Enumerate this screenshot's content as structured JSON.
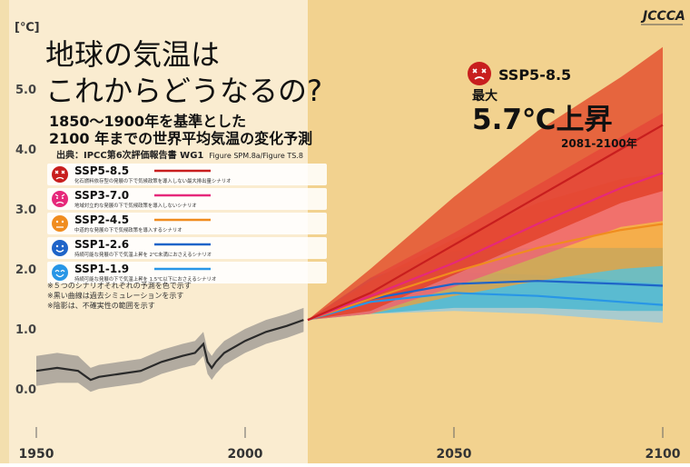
{
  "logo_text": "JCCCA",
  "unit_label": "[℃]",
  "title_line1": "地球の気温は",
  "title_line2": "これからどうなるの?",
  "subtitle_line1": "1850～1900年を基準とした",
  "subtitle_line2": "2100 年までの世界平均気温の変化予測",
  "source_label": "出典：IPCC第6次評価報告書 WG1",
  "source_figure": "Figure SPM.8a/Figure TS.8",
  "highlight": {
    "scenario": "SSP5-8.5",
    "max_label": "最大",
    "value": "5.7℃上昇",
    "period": "2081-2100年"
  },
  "legend": [
    {
      "name": "SSP5-8.5",
      "desc": "化石燃料依存型の発展の下で気候政策を導入しない最大排出量シナリオ",
      "color": "#c81e1e",
      "face": "dead"
    },
    {
      "name": "SSP3-7.0",
      "desc": "地域対立的な発展の下で気候政策を導入しないシナリオ",
      "color": "#e6287a",
      "face": "angry"
    },
    {
      "name": "SSP2-4.5",
      "desc": "中道的な発展の下で気候政策を導入するシナリオ",
      "color": "#f08c1e",
      "face": "neutral"
    },
    {
      "name": "SSP1-2.6",
      "desc": "持続可能な発展の下で気温上昇を 2℃未満におさえるシナリオ",
      "color": "#1e64c8",
      "face": "smile"
    },
    {
      "name": "SSP1-1.9",
      "desc": "持続可能な発展の下で気温上昇を 1.5℃以下におさえるシナリオ",
      "color": "#2896e6",
      "face": "happy"
    }
  ],
  "notes": [
    "※５つのシナリオそれぞれの予測を色で示す",
    "※黒い曲線は過去シミュレーションを示す",
    "※陰影は、不確実性の範囲を示す"
  ],
  "colors": {
    "past_background": "#faecd0",
    "future_background": "#f2d28f",
    "historical_line": "#2a2a2a",
    "historical_band": "#9a9590"
  },
  "chart_data": {
    "type": "line",
    "xlabel": "",
    "ylabel": "[℃]",
    "xlim": [
      1950,
      2100
    ],
    "ylim": [
      -0.5,
      6.0
    ],
    "x_ticks": [
      1950,
      2000,
      2050,
      2100
    ],
    "x_tick_labels": [
      "1950",
      "2000",
      "2050",
      "2100"
    ],
    "y_ticks": [
      0.0,
      1.0,
      2.0,
      3.0,
      4.0,
      5.0
    ],
    "y_tick_labels": [
      "0.0",
      "1.0",
      "2.0",
      "3.0",
      "4.0",
      "5.0"
    ],
    "grid": false,
    "projection_start": 2015,
    "historical": {
      "name": "過去シミュレーション",
      "x": [
        1950,
        1955,
        1960,
        1963,
        1965,
        1970,
        1975,
        1980,
        1985,
        1988,
        1990,
        1991,
        1992,
        1993,
        1995,
        2000,
        2005,
        2010,
        2014
      ],
      "y": [
        0.3,
        0.35,
        0.3,
        0.15,
        0.2,
        0.25,
        0.3,
        0.45,
        0.55,
        0.6,
        0.75,
        0.45,
        0.35,
        0.45,
        0.6,
        0.8,
        0.95,
        1.05,
        1.15
      ],
      "lower": [
        0.05,
        0.1,
        0.1,
        -0.05,
        0.0,
        0.05,
        0.1,
        0.25,
        0.35,
        0.4,
        0.55,
        0.25,
        0.15,
        0.25,
        0.4,
        0.6,
        0.75,
        0.85,
        0.95
      ],
      "upper": [
        0.55,
        0.6,
        0.55,
        0.35,
        0.4,
        0.45,
        0.5,
        0.65,
        0.75,
        0.8,
        0.95,
        0.65,
        0.55,
        0.65,
        0.8,
        1.0,
        1.15,
        1.25,
        1.35
      ]
    },
    "series": [
      {
        "name": "SSP5-8.5",
        "color": "#c81e1e",
        "band_color": "#e03a1e",
        "x": [
          2015,
          2030,
          2050,
          2070,
          2090,
          2100
        ],
        "y": [
          1.15,
          1.6,
          2.4,
          3.2,
          4.0,
          4.4
        ],
        "lower": [
          1.15,
          1.3,
          1.9,
          2.5,
          3.1,
          3.3
        ],
        "upper": [
          1.15,
          2.0,
          3.2,
          4.3,
          5.2,
          5.7
        ]
      },
      {
        "name": "SSP3-7.0",
        "color": "#e6287a",
        "band_color": "#f05a78",
        "x": [
          2015,
          2030,
          2050,
          2070,
          2090,
          2100
        ],
        "y": [
          1.15,
          1.55,
          2.1,
          2.75,
          3.35,
          3.6
        ],
        "lower": [
          1.15,
          1.25,
          1.7,
          2.2,
          2.7,
          2.8
        ],
        "upper": [
          1.15,
          1.85,
          2.6,
          3.4,
          4.2,
          4.6
        ]
      },
      {
        "name": "SSP2-4.5",
        "color": "#f08c1e",
        "band_color": "#f5a030",
        "x": [
          2015,
          2030,
          2050,
          2070,
          2090,
          2100
        ],
        "y": [
          1.15,
          1.5,
          1.95,
          2.35,
          2.65,
          2.75
        ],
        "lower": [
          1.15,
          1.25,
          1.55,
          1.8,
          2.0,
          2.05
        ],
        "upper": [
          1.15,
          1.8,
          2.5,
          3.1,
          3.5,
          3.6
        ]
      },
      {
        "name": "SSP1-2.6",
        "color": "#1e64c8",
        "band_color": "#3cb4d2",
        "x": [
          2015,
          2030,
          2050,
          2070,
          2090,
          2100
        ],
        "y": [
          1.15,
          1.5,
          1.75,
          1.8,
          1.75,
          1.72
        ],
        "lower": [
          1.15,
          1.25,
          1.35,
          1.35,
          1.3,
          1.3
        ],
        "upper": [
          1.15,
          1.85,
          2.3,
          2.35,
          2.35,
          2.35
        ]
      },
      {
        "name": "SSP1-1.9",
        "color": "#2896e6",
        "band_color": "#8cc8e6",
        "x": [
          2015,
          2030,
          2050,
          2070,
          2090,
          2100
        ],
        "y": [
          1.15,
          1.45,
          1.6,
          1.55,
          1.45,
          1.4
        ],
        "lower": [
          1.15,
          1.25,
          1.3,
          1.25,
          1.15,
          1.1
        ],
        "upper": [
          1.15,
          1.7,
          1.95,
          1.9,
          1.8,
          1.75
        ]
      }
    ]
  }
}
